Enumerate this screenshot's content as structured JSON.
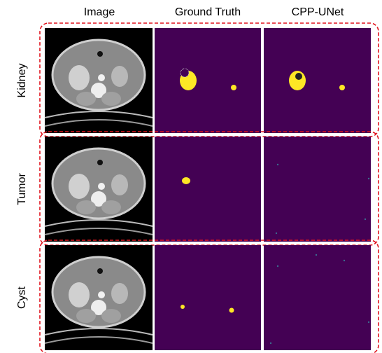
{
  "columns": [
    "Image",
    "Ground Truth",
    "CPP-UNet"
  ],
  "rows": [
    "Kidney",
    "Tumor",
    "Cyst"
  ]
}
